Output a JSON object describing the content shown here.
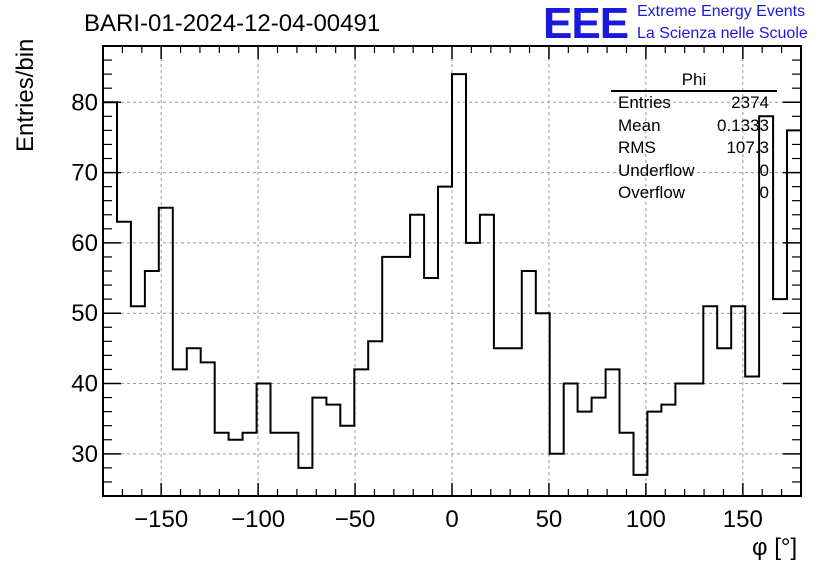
{
  "title": "BARI-01-2024-12-04-00491",
  "logo": {
    "text": "EEE",
    "line1": "Extreme Energy Events",
    "line2": "La Scienza nelle Scuole",
    "color": "#1a1adc"
  },
  "stats": {
    "title": "Phi",
    "rows": [
      {
        "label": "Entries",
        "value": "2374"
      },
      {
        "label": "Mean",
        "value": "0.1333"
      },
      {
        "label": "RMS",
        "value": "107.3"
      },
      {
        "label": "Underflow",
        "value": "0"
      },
      {
        "label": "Overflow",
        "value": "0"
      }
    ]
  },
  "chart_data": {
    "type": "histogram",
    "title": "BARI-01-2024-12-04-00491",
    "xlabel": "φ [°]",
    "ylabel": "Entries/bin",
    "xlim": [
      -180,
      180
    ],
    "ylim": [
      24,
      88
    ],
    "bin_width": 7.2,
    "bin_edges_start": -180,
    "xticks": [
      -150,
      -100,
      -50,
      0,
      50,
      100,
      150
    ],
    "xtick_labels": [
      "−150",
      "−100",
      "−50",
      "0",
      "50",
      "100",
      "150"
    ],
    "yticks": [
      30,
      40,
      50,
      60,
      70,
      80
    ],
    "ytick_labels": [
      "30",
      "40",
      "50",
      "60",
      "70",
      "80"
    ],
    "grid": true,
    "values": [
      80,
      63,
      51,
      56,
      65,
      42,
      45,
      43,
      33,
      32,
      33,
      40,
      33,
      33,
      28,
      38,
      37,
      34,
      42,
      46,
      58,
      58,
      64,
      55,
      68,
      84,
      60,
      64,
      45,
      45,
      56,
      50,
      30,
      40,
      36,
      38,
      42,
      33,
      27,
      36,
      37,
      40,
      40,
      51,
      45,
      51,
      41,
      78,
      52,
      76
    ]
  }
}
